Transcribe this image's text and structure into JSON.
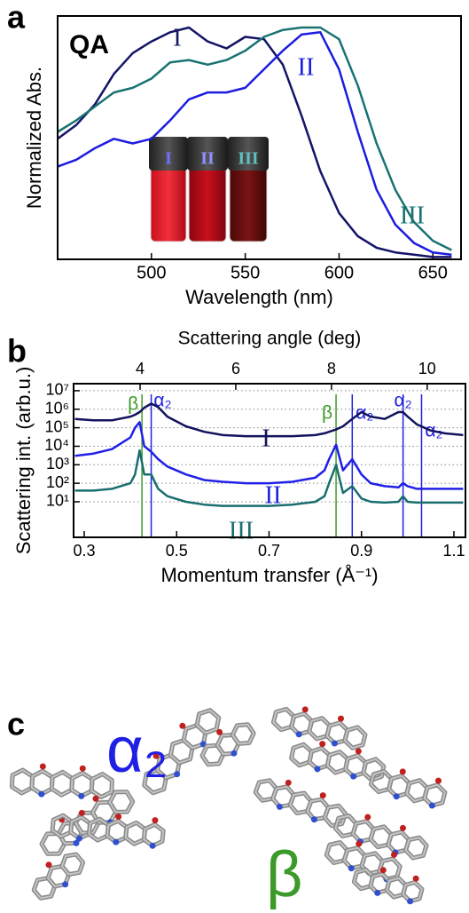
{
  "chart_data": [
    {
      "type": "line",
      "panel_label": "a",
      "annotation": "QA",
      "xlabel": "Wavelength (nm)",
      "ylabel": "Normalized Abs.",
      "x": [
        450,
        460,
        470,
        480,
        490,
        500,
        510,
        520,
        530,
        540,
        550,
        560,
        570,
        580,
        590,
        600,
        610,
        620,
        630,
        640,
        650,
        660
      ],
      "series": [
        {
          "name": "I",
          "color": "#141468",
          "values": [
            0.52,
            0.58,
            0.67,
            0.8,
            0.89,
            0.94,
            0.98,
            1.0,
            0.94,
            0.91,
            0.96,
            0.95,
            0.84,
            0.62,
            0.38,
            0.2,
            0.1,
            0.05,
            0.03,
            0.02,
            0.01,
            0.01
          ]
        },
        {
          "name": "II",
          "color": "#1c1ce0",
          "values": [
            0.4,
            0.43,
            0.48,
            0.52,
            0.5,
            0.52,
            0.6,
            0.69,
            0.72,
            0.72,
            0.74,
            0.82,
            0.9,
            0.97,
            0.98,
            0.82,
            0.55,
            0.3,
            0.15,
            0.07,
            0.03,
            0.02
          ]
        },
        {
          "name": "III",
          "color": "#1a7272",
          "values": [
            0.55,
            0.6,
            0.66,
            0.72,
            0.74,
            0.78,
            0.85,
            0.86,
            0.84,
            0.86,
            0.9,
            0.96,
            0.99,
            1.0,
            1.0,
            0.95,
            0.75,
            0.5,
            0.3,
            0.16,
            0.08,
            0.04
          ]
        }
      ],
      "vial_labels": [
        "I",
        "II",
        "III"
      ],
      "xlim": [
        450,
        665
      ],
      "xticks": [
        500,
        550,
        600,
        650
      ],
      "ylim": [
        0,
        1.05
      ]
    },
    {
      "type": "line",
      "panel_label": "b",
      "xlabel": "Momentum transfer (Å⁻¹)",
      "x2label": "Scattering angle (deg)",
      "ylabel": "Scattering int. (arb.u.)",
      "log_y": true,
      "grid": true,
      "x": [
        0.28,
        0.32,
        0.36,
        0.4,
        0.41,
        0.42,
        0.43,
        0.445,
        0.46,
        0.48,
        0.52,
        0.56,
        0.6,
        0.65,
        0.7,
        0.75,
        0.8,
        0.82,
        0.83,
        0.845,
        0.86,
        0.88,
        0.9,
        0.92,
        0.95,
        0.98,
        0.99,
        1.0,
        1.02,
        1.05,
        1.08,
        1.12
      ],
      "series": [
        {
          "name": "I",
          "color": "#12125e",
          "values": [
            300000,
            250000,
            250000,
            400000,
            500000,
            700000,
            1200000,
            2000000,
            1300000,
            400000,
            120000,
            60000,
            40000,
            35000,
            35000,
            35000,
            40000,
            50000,
            60000,
            80000,
            120000,
            300000,
            700000,
            400000,
            300000,
            700000,
            700000,
            400000,
            150000,
            70000,
            50000,
            40000
          ]
        },
        {
          "name": "II",
          "color": "#2020e8",
          "values": [
            3000,
            4000,
            7000,
            30000,
            100000,
            200000,
            10000,
            5000,
            2000,
            800,
            300,
            150,
            120,
            100,
            100,
            120,
            200,
            500,
            2000,
            12000,
            500,
            2000,
            300,
            100,
            70,
            60,
            100,
            70,
            50,
            50,
            50,
            50
          ]
        },
        {
          "name": "III",
          "color": "#1a6e6e",
          "values": [
            40,
            40,
            50,
            100,
            300,
            6000,
            300,
            300,
            50,
            20,
            10,
            7,
            6,
            6,
            6,
            7,
            10,
            20,
            100,
            1000,
            30,
            70,
            15,
            10,
            9,
            10,
            20,
            10,
            9,
            9,
            9,
            9
          ]
        }
      ],
      "reference_lines": [
        {
          "label": "β",
          "x": 0.425,
          "color": "#3c9a2a"
        },
        {
          "label": "α₂",
          "x": 0.445,
          "color": "#2020e0"
        },
        {
          "label": "β",
          "x": 0.845,
          "color": "#3c9a2a"
        },
        {
          "label": "α₂",
          "x": 0.88,
          "color": "#2020e0"
        },
        {
          "label": "α₂",
          "x": 0.99,
          "color": "#2020e0"
        },
        {
          "label": "α₂",
          "x": 1.03,
          "color": "#2020e0"
        }
      ],
      "xlim": [
        0.277,
        1.125
      ],
      "xticks": [
        0.3,
        0.5,
        0.7,
        0.9,
        1.1
      ],
      "x2lim": [
        2.61,
        10.8
      ],
      "x2ticks": [
        4,
        6,
        8,
        10
      ],
      "ylim": [
        0.12,
        24000000
      ],
      "yticks": [
        {
          "value": 10,
          "label": "10¹"
        },
        {
          "value": 100,
          "label": "10²"
        },
        {
          "value": 1000,
          "label": "10³"
        },
        {
          "value": 10000,
          "label": "10⁴"
        },
        {
          "value": 100000,
          "label": "10⁵"
        },
        {
          "value": 1000000,
          "label": "10⁶"
        },
        {
          "value": 10000000,
          "label": "10⁷"
        }
      ]
    }
  ],
  "panel_c": {
    "panel_label": "c",
    "labels": [
      "α₂",
      "β"
    ]
  }
}
